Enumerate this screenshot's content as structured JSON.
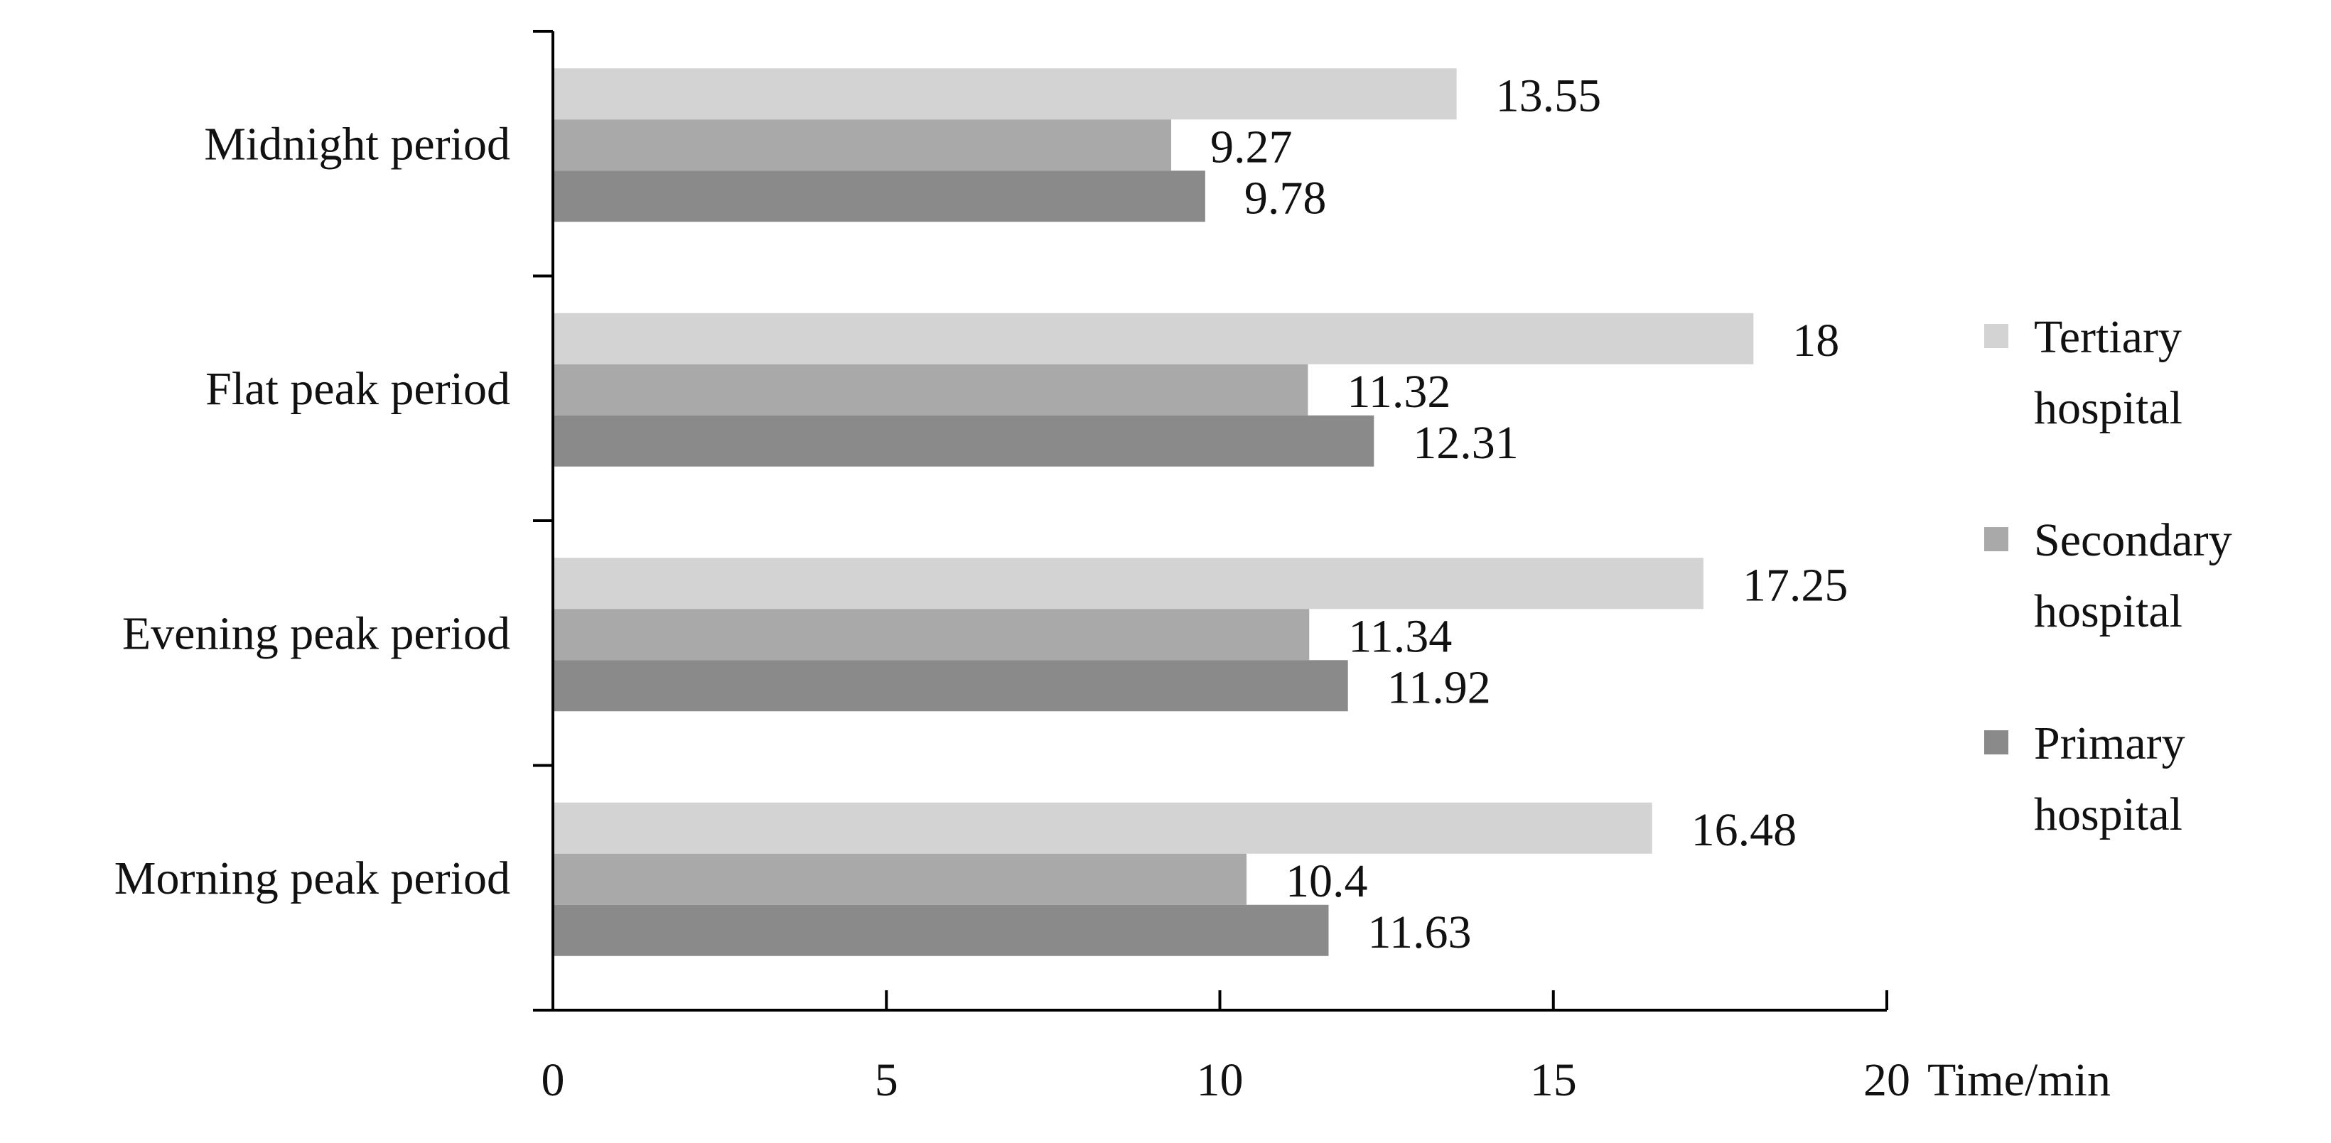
{
  "chart_data": {
    "type": "bar",
    "orientation": "horizontal",
    "title": "",
    "xlabel": "Time/min",
    "ylabel": "",
    "categories": [
      "Midnight period",
      "Flat peak period",
      "Evening peak period",
      "Morning peak period"
    ],
    "series": [
      {
        "name_lines": [
          "Tertiary",
          "hospital"
        ],
        "color": "#d3d3d3",
        "values": [
          13.55,
          18,
          17.25,
          16.48
        ],
        "labels": [
          "13.55",
          "18",
          "17.25",
          "16.48"
        ]
      },
      {
        "name_lines": [
          "Secondary",
          "hospital"
        ],
        "color": "#a9a9a9",
        "values": [
          9.27,
          11.32,
          11.34,
          10.4
        ],
        "labels": [
          "9.27",
          "11.32",
          "11.34",
          "10.4"
        ]
      },
      {
        "name_lines": [
          "Primary",
          "hospital"
        ],
        "color": "#8a8a8a",
        "values": [
          9.78,
          12.31,
          11.92,
          11.63
        ],
        "labels": [
          "9.78",
          "12.31",
          "11.92",
          "11.63"
        ]
      }
    ],
    "xlim": [
      0,
      20
    ],
    "xticks": [
      0,
      5,
      10,
      15,
      20
    ],
    "xtick_labels": [
      "0",
      "5",
      "10",
      "15",
      "20"
    ],
    "grid": false,
    "legend_position": "right"
  }
}
